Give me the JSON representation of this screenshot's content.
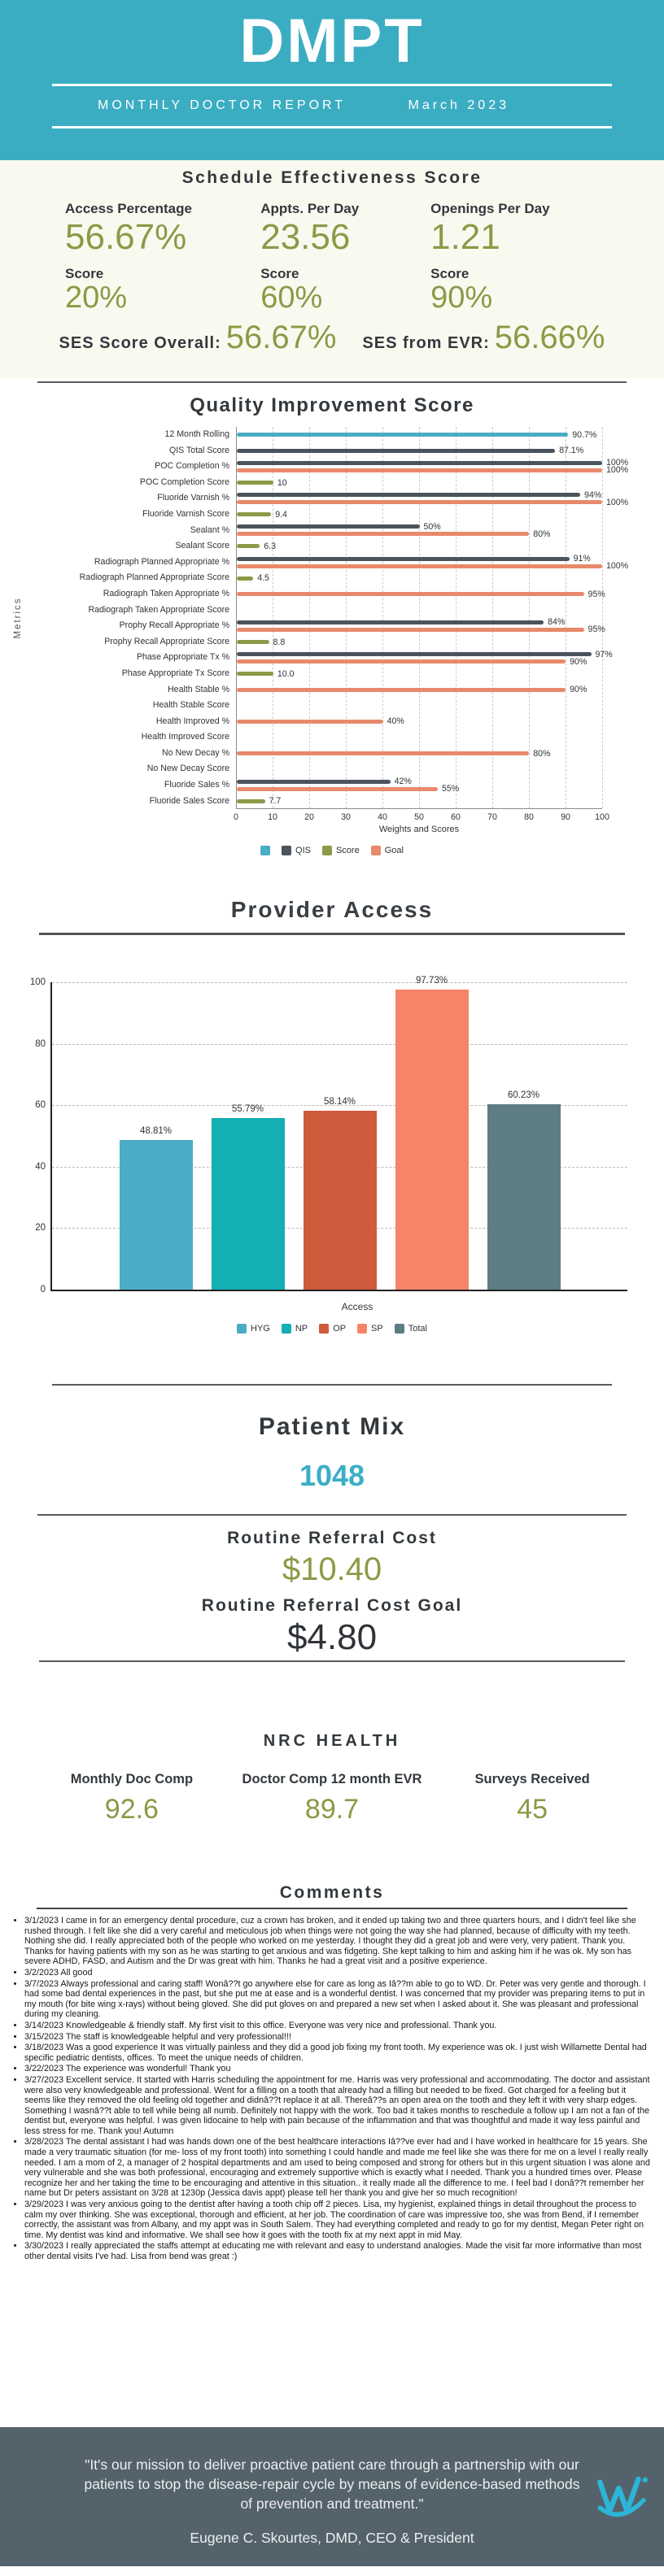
{
  "header": {
    "logo": "DMPT",
    "report_title": "MONTHLY DOCTOR REPORT",
    "period": "March 2023"
  },
  "colors": {
    "header_teal": "#3BADC2",
    "olive_value": "#8B9A46",
    "dark_text": "#33383C",
    "patient_mix_teal": "#3BAEC8",
    "footer_slate": "#54626C",
    "logo_teal": "#2CB5D6"
  },
  "ses": {
    "title": "Schedule Effectiveness Score",
    "metrics": [
      {
        "label": "Access Percentage",
        "value": "56.67%",
        "score_label": "Score",
        "score": "20%"
      },
      {
        "label": "Appts. Per Day",
        "value": "23.56",
        "score_label": "Score",
        "score": "60%"
      },
      {
        "label": "Openings Per Day",
        "value": "1.21",
        "score_label": "Score",
        "score": "90%"
      }
    ],
    "overall_label": "SES Score Overall:",
    "overall_value": "56.67%",
    "evr_label": "SES from EVR:",
    "evr_value": "56.66%"
  },
  "chart_data": [
    {
      "type": "bar",
      "orientation": "horizontal",
      "title": "Quality Improvement Score",
      "xlabel": "Weights and Scores",
      "ylabel": "Metrics",
      "xlim": [
        0,
        100
      ],
      "x_ticks": [
        0,
        10,
        20,
        30,
        40,
        50,
        60,
        70,
        80,
        90,
        100
      ],
      "grid": "dashed-vertical",
      "series_colors": {
        "12mo": "#4BACC6",
        "QIS": "#4A545E",
        "Score": "#8B9A46",
        "Goal": "#E8896B"
      },
      "legend": [
        {
          "name": "",
          "color": "#4BACC6"
        },
        {
          "name": "QIS",
          "color": "#4A545E"
        },
        {
          "name": "Score",
          "color": "#8B9A46"
        },
        {
          "name": "Goal",
          "color": "#E8896B"
        }
      ],
      "rows": [
        {
          "label": "12 Month Rolling",
          "bars": [
            {
              "series": "12mo",
              "value": 90.7,
              "text": "90.7%"
            }
          ]
        },
        {
          "label": "QIS Total Score",
          "bars": [
            {
              "series": "QIS",
              "value": 87.1,
              "text": "87.1%"
            }
          ]
        },
        {
          "label": "POC Completion %",
          "bars": [
            {
              "series": "QIS",
              "value": 100,
              "text": "100%"
            },
            {
              "series": "Goal",
              "value": 100,
              "text": "100%"
            }
          ]
        },
        {
          "label": "POC Completion Score",
          "bars": [
            {
              "series": "Score",
              "value": 10,
              "text": "10"
            }
          ]
        },
        {
          "label": "Fluoride Varnish %",
          "bars": [
            {
              "series": "QIS",
              "value": 94,
              "text": "94%"
            },
            {
              "series": "Goal",
              "value": 100,
              "text": "100%"
            }
          ]
        },
        {
          "label": "Fluoride Varnish Score",
          "bars": [
            {
              "series": "Score",
              "value": 9.4,
              "text": "9.4"
            }
          ]
        },
        {
          "label": "Sealant %",
          "bars": [
            {
              "series": "QIS",
              "value": 50,
              "text": "50%"
            },
            {
              "series": "Goal",
              "value": 80,
              "text": "80%"
            }
          ]
        },
        {
          "label": "Sealant Score",
          "bars": [
            {
              "series": "Score",
              "value": 6.3,
              "text": "6.3"
            }
          ]
        },
        {
          "label": "Radiograph Planned Appropriate %",
          "bars": [
            {
              "series": "QIS",
              "value": 91,
              "text": "91%"
            },
            {
              "series": "Goal",
              "value": 100,
              "text": "100%"
            }
          ]
        },
        {
          "label": "Radiograph Planned Appropriate Score",
          "bars": [
            {
              "series": "Score",
              "value": 4.5,
              "text": "4.5"
            }
          ]
        },
        {
          "label": "Radiograph Taken Appropriate %",
          "bars": [
            {
              "series": "Goal",
              "value": 95,
              "text": "95%"
            }
          ]
        },
        {
          "label": "Radiograph Taken Appropriate Score",
          "bars": []
        },
        {
          "label": "Prophy Recall Appropriate %",
          "bars": [
            {
              "series": "QIS",
              "value": 84,
              "text": "84%"
            },
            {
              "series": "Goal",
              "value": 95,
              "text": "95%"
            }
          ]
        },
        {
          "label": "Prophy Recall Appropriate Score",
          "bars": [
            {
              "series": "Score",
              "value": 8.8,
              "text": "8.8"
            }
          ]
        },
        {
          "label": "Phase Appropriate Tx %",
          "bars": [
            {
              "series": "QIS",
              "value": 97,
              "text": "97%"
            },
            {
              "series": "Goal",
              "value": 90,
              "text": "90%"
            }
          ]
        },
        {
          "label": "Phase Appropriate Tx Score",
          "bars": [
            {
              "series": "Score",
              "value": 10,
              "text": "10.0"
            }
          ]
        },
        {
          "label": "Health Stable %",
          "bars": [
            {
              "series": "Goal",
              "value": 90,
              "text": "90%"
            }
          ]
        },
        {
          "label": "Health Stable Score",
          "bars": []
        },
        {
          "label": "Health Improved %",
          "bars": [
            {
              "series": "Goal",
              "value": 40,
              "text": "40%"
            }
          ]
        },
        {
          "label": "Health Improved Score",
          "bars": []
        },
        {
          "label": "No New Decay %",
          "bars": [
            {
              "series": "Goal",
              "value": 80,
              "text": "80%"
            }
          ]
        },
        {
          "label": "No New Decay Score",
          "bars": []
        },
        {
          "label": "Fluoride Sales %",
          "bars": [
            {
              "series": "QIS",
              "value": 42,
              "text": "42%"
            },
            {
              "series": "Goal",
              "value": 55,
              "text": "55%"
            }
          ]
        },
        {
          "label": "Fluoride Sales Score",
          "bars": [
            {
              "series": "Score",
              "value": 7.7,
              "text": "7.7"
            }
          ]
        }
      ]
    },
    {
      "type": "bar",
      "orientation": "vertical",
      "title": "Provider Access",
      "xlabel": "Access",
      "ylim": [
        0,
        100
      ],
      "y_ticks": [
        0,
        20,
        40,
        60,
        80,
        100
      ],
      "grid": "dashed-horizontal",
      "legend_position": "bottom",
      "categories": [
        "HYG",
        "NP",
        "OP",
        "SP",
        "Total"
      ],
      "values": [
        48.81,
        55.79,
        58.14,
        97.73,
        60.23
      ],
      "labels": [
        "48.81%",
        "55.79%",
        "58.14%",
        "97.73%",
        "60.23%"
      ],
      "colors": [
        "#4BACC6",
        "#13AFB2",
        "#CE5B3B",
        "#F58468",
        "#5D7D83"
      ]
    }
  ],
  "patient_mix": {
    "title": "Patient Mix",
    "value": "1048"
  },
  "referral": {
    "cost_label": "Routine Referral Cost",
    "cost_value": "$10.40",
    "goal_label": "Routine Referral Cost Goal",
    "goal_value": "$4.80"
  },
  "nrc": {
    "title": "NRC HEALTH",
    "metrics": [
      {
        "label": "Monthly Doc Comp",
        "value": "92.6"
      },
      {
        "label": "Doctor Comp 12 month EVR",
        "value": "89.7"
      },
      {
        "label": "Surveys Received",
        "value": "45"
      }
    ]
  },
  "comments": {
    "title": "Comments",
    "items": [
      "3/1/2023 I came in for an emergency dental procedure, cuz a crown has broken, and it ended up taking two and three quarters hours, and I didn't feel like she rushed through. I felt like she did a very careful and meticulous job when things were not going the way she had planned, because of difficulty with my teeth. Nothing she did. I really appreciated both of the people who worked on me yesterday. I thought they did a great job and were very, very patient. Thank you. Thanks for having patients with my son as he was starting to get anxious and was fidgeting. She kept talking to him and asking him if he was ok. My son has severe ADHD, FASD, and Autism and the Dr was great with him. Thanks he had a great visit and a positive experience.",
      "3/2/2023 All good",
      "3/7/2023 Always professional and caring staff! Wonâ??t go anywhere else for care as long as Iâ??m able to go to WD. Dr. Peter was very gentle and thorough. I had some bad dental experiences in the past, but she put me at ease and is a wonderful dentist. I was concerned that my provider was preparing items to put in my mouth (for bite wing x-rays) without being gloved. She did put gloves on and prepared a new set when I asked about it. She was pleasant and professional during my cleaning.",
      "3/14/2023 Knowledgeable & friendly staff. My first visit to this office. Everyone was very nice and professional. Thank you.",
      "3/15/2023 The staff is knowledgeable helpful and very professional!!!",
      "3/18/2023 Was a good experience It was virtually painless and they did a good job fixing my front tooth. My experience was ok. I just wish Willamette Dental had specific pediatric dentists, offices. To meet the unique needs of children.",
      "3/22/2023 The experience was wonderful! Thank you",
      "3/27/2023 Excellent service. It started with Harris scheduling the appointment for me. Harris was very professional and accommodating. The doctor and assistant were also very knowledgeable and professional. Went for a filling on a tooth that already had a filling but needed to be fixed. Got charged for a feeling but it seems like they removed the old feeling old together and didnâ??t replace it at all. Thereâ??s an open area on the tooth and they left it with very sharp edges. Something I wasnâ??t able to tell while being all numb. Definitely not happy with the work. Too bad it takes months to reschedule a follow up I am not a fan of the dentist but, everyone was helpful. I was given lidocaine to help with pain because of the inflammation and that was thoughtful and made it way less painful and less stress for me. Thank you! Autumn",
      "3/28/2023 The dental assistant I had was hands down one of the best healthcare interactions Iâ??ve ever had and I have worked in healthcare for 15 years. She made a very traumatic situation (for me- loss of my front tooth) into something I could handle and made me feel like she was there for me on a level I really really needed. I am a mom of 2, a manager of 2 hospital departments and am used to being composed and strong for others but in this urgent situation I was alone and very vulnerable and she was both professional, encouraging and extremely supportive which is exactly what I needed. Thank you a hundred times over. Please recognize her and her taking the time to be encouraging and attentive in this situation.. it really made all the difference to me. I feel bad I donâ??t remember her name but Dr peters assistant on 3/28 at 1230p (Jessica davis appt) please tell her thank you and give her so much recognition!",
      "3/29/2023 I was very anxious going to the dentist after having a tooth chip off 2 pieces. Lisa, my hygienist, explained things in detail throughout the process to calm my over thinking. She was exceptional, thorough and efficient, at her job. The coordination of care was impressive too, she was from Bend, if I remember correctly, the assistant was from Albany, and my appt was in South Salem. They had everything completed and ready to go for my dentist, Megan Peter right on time. My dentist was kind and informative. We shall see how it goes with the tooth fix at my next appt in mid May.",
      "3/30/2023 I really appreciated the staffs attempt at educating me with relevant and easy to understand analogies. Made the visit far more informative than most other dental visits I've had. Lisa from bend was great :)"
    ]
  },
  "footer": {
    "quote": "\"It's our mission to deliver proactive patient care through a partnership with our patients to stop the disease-repair cycle by means of evidence-based methods of prevention and treatment.\"",
    "signature": "Eugene C. Skourtes, DMD, CEO & President"
  }
}
